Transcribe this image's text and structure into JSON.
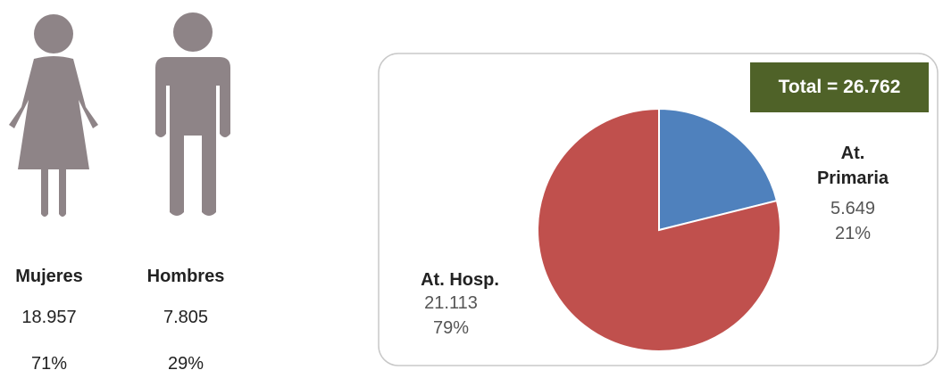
{
  "people": [
    {
      "label": "Mujeres",
      "value_label": "18.957",
      "percent_label": "71%"
    },
    {
      "label": "Hombres",
      "value_label": "7.805",
      "percent_label": "29%"
    }
  ],
  "chart_data": {
    "type": "pie",
    "total_label": "Total  = 26.762",
    "categories": [
      "At. Primaria",
      "At. Hosp."
    ],
    "values": [
      5649,
      21113
    ],
    "value_labels": [
      "5.649",
      "21.113"
    ],
    "percent_labels": [
      "21%",
      "79%"
    ],
    "colors": [
      "#4f81bd",
      "#c0504d"
    ]
  }
}
